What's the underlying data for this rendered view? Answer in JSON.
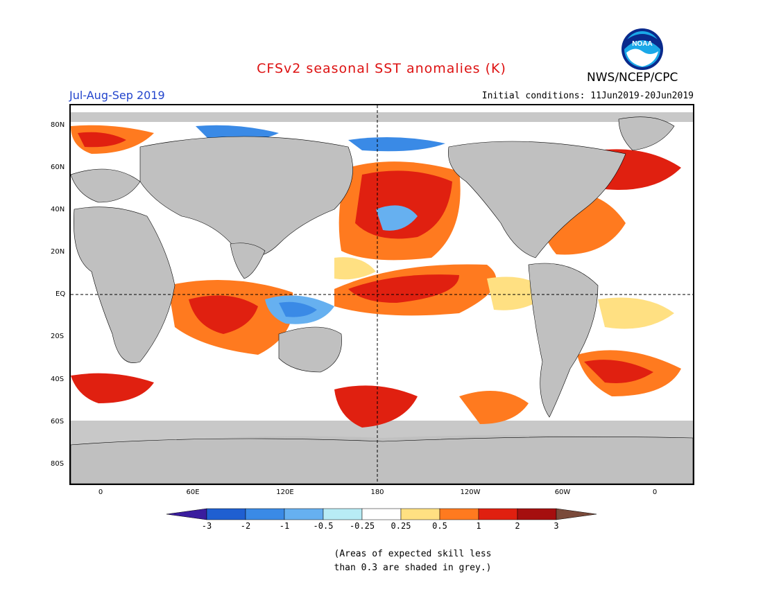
{
  "title": "CFSv2 seasonal SST anomalies (K)",
  "agency": "NWS/NCEP/CPC",
  "logo_text": "NOAA",
  "period": "Jul-Aug-Sep 2019",
  "initial_conditions": "Initial conditions: 11Jun2019-20Jun2019",
  "lat_labels": [
    "80N",
    "60N",
    "40N",
    "20N",
    "EQ",
    "20S",
    "40S",
    "60S",
    "80S"
  ],
  "lon_labels": [
    "0",
    "60E",
    "120E",
    "180",
    "120W",
    "60W",
    "0"
  ],
  "colorbar": {
    "labels": [
      "-3",
      "-2",
      "-1",
      "-0.5",
      "-0.25",
      "0.25",
      "0.5",
      "1",
      "2",
      "3"
    ],
    "colors": [
      "#3a1d9e",
      "#1f5fd1",
      "#3a8ae6",
      "#66b0f0",
      "#b8ecf5",
      "#ffffff",
      "#ffe082",
      "#ff7a1f",
      "#e02010",
      "#a50f0f",
      "#7a4a3a"
    ]
  },
  "note": [
    "(Areas of expected skill less",
    "than 0.3 are shaded in grey.)"
  ],
  "colors": {
    "title": "#dd1111",
    "period": "#2244cc",
    "land": "#c0c0c0",
    "skill_grey": "#c8c8c8"
  }
}
